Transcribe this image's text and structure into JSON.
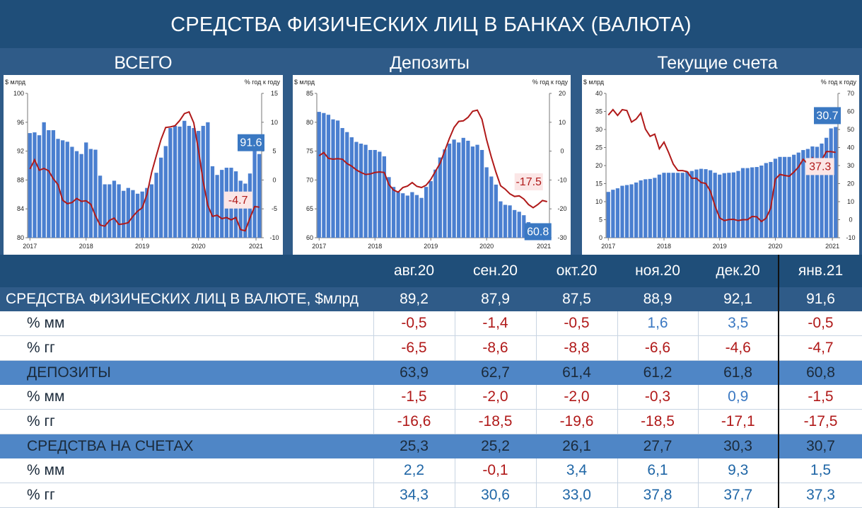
{
  "title": "СРЕДСТВА ФИЗИЧЕСКИХ ЛИЦ В БАНКАХ (ВАЛЮТА)",
  "colors": {
    "bar": "#4a7fd0",
    "line": "#b01919",
    "header": "#1f4e79",
    "band": "#2f5b88",
    "row_medium": "#4f86c6",
    "neg_text": "#b01919",
    "pos_text": "#3a78c2"
  },
  "chart_data": [
    {
      "type": "bar",
      "panel_title": "ВСЕГО",
      "ylabel": "$ млрд",
      "y2label": "% год к году",
      "ylim": [
        80,
        100
      ],
      "yticks": [
        80,
        84,
        88,
        92,
        96,
        100
      ],
      "y2lim": [
        -10,
        15
      ],
      "y2ticks": [
        -10,
        -5,
        0,
        5,
        10,
        15
      ],
      "x_tick_labels": [
        "2017",
        "2018",
        "2019",
        "2020",
        "2021"
      ],
      "bar_series": {
        "name": "$ млрд",
        "values": [
          94.5,
          94.6,
          94.2,
          96.0,
          94.9,
          94.9,
          93.7,
          93.5,
          93.3,
          92.6,
          92.0,
          91.6,
          93.2,
          92.3,
          92.2,
          88.6,
          87.4,
          87.4,
          87.9,
          87.4,
          86.5,
          86.9,
          86.6,
          86.1,
          86.4,
          86.9,
          87.4,
          89.0,
          91.1,
          92.7,
          95.2,
          95.5,
          95.4,
          96.2,
          95.5,
          95.2,
          94.8,
          95.5,
          96.0,
          89.9,
          88.7,
          89.4,
          89.7,
          89.7,
          89.2,
          87.9,
          87.5,
          88.9,
          92.1,
          91.6
        ]
      },
      "line_series": {
        "name": "% год к году",
        "values": [
          1.9,
          3.5,
          1.7,
          2.0,
          1.6,
          0.2,
          -0.8,
          -3.5,
          -4.1,
          -3.9,
          -3.2,
          -3.7,
          -3.6,
          -4.2,
          -6.2,
          -7.8,
          -8.0,
          -7.0,
          -6.6,
          -7.7,
          -7.6,
          -7.4,
          -6.3,
          -5.4,
          -4.8,
          -2.5,
          1.3,
          4.2,
          7.0,
          9.1,
          9.2,
          9.4,
          10.3,
          11.5,
          11.8,
          9.9,
          5.2,
          -0.2,
          -4.4,
          -6.3,
          -6.1,
          -6.7,
          -6.5,
          -6.9,
          -6.5,
          -8.6,
          -8.8,
          -6.6,
          -4.6,
          -4.7
        ]
      },
      "callouts": {
        "bar_last": "91.6",
        "line_last": "-4.7"
      }
    },
    {
      "type": "bar",
      "panel_title": "Депозиты",
      "ylabel": "$ млрд",
      "y2label": "% год к году",
      "ylim": [
        60,
        85
      ],
      "yticks": [
        60,
        65,
        70,
        75,
        80,
        85
      ],
      "y2lim": [
        -30,
        20
      ],
      "y2ticks": [
        -30,
        -20,
        -10,
        0,
        10,
        20
      ],
      "x_tick_labels": [
        "2017",
        "2018",
        "2019",
        "2020",
        "2021"
      ],
      "bar_series": {
        "name": "$ млрд",
        "values": [
          81.8,
          81.6,
          81.3,
          80.5,
          80.3,
          79.0,
          78.3,
          77.4,
          76.6,
          76.3,
          76.1,
          75.2,
          75.2,
          74.9,
          74.1,
          70.5,
          68.8,
          67.9,
          67.7,
          67.3,
          67.9,
          67.4,
          66.9,
          68.8,
          69.8,
          71.8,
          73.9,
          75.3,
          76.3,
          77.0,
          76.5,
          77.3,
          76.8,
          75.8,
          76.1,
          75.2,
          72.2,
          70.6,
          69.2,
          66.3,
          65.7,
          65.6,
          64.8,
          64.5,
          63.9,
          62.7,
          61.4,
          61.2,
          61.8,
          60.8
        ]
      },
      "line_series": {
        "name": "% год к году",
        "values": [
          -1.6,
          -0.5,
          -2.5,
          -2.8,
          -2.6,
          -2.8,
          -4.3,
          -5.2,
          -6.5,
          -7.4,
          -8.1,
          -7.9,
          -7.4,
          -7.2,
          -7.4,
          -11.6,
          -13.5,
          -14.2,
          -12.6,
          -12.1,
          -10.9,
          -12.2,
          -12.6,
          -11.8,
          -9.8,
          -7.0,
          -4.2,
          0.1,
          4.4,
          8.2,
          10.3,
          10.5,
          11.7,
          13.8,
          14.2,
          11.0,
          3.9,
          -2.0,
          -7.3,
          -12.0,
          -13.2,
          -14.8,
          -15.7,
          -15.5,
          -16.6,
          -18.5,
          -19.6,
          -18.5,
          -17.1,
          -17.5
        ]
      },
      "callouts": {
        "bar_last": "60.8",
        "line_last": "-17.5"
      }
    },
    {
      "type": "bar",
      "panel_title": "Текущие счета",
      "ylabel": "$ млрд",
      "y2label": "% год к году",
      "ylim": [
        0,
        40
      ],
      "yticks": [
        0,
        5,
        10,
        15,
        20,
        25,
        30,
        35,
        40
      ],
      "y2lim": [
        -10,
        70
      ],
      "y2ticks": [
        -10,
        0,
        10,
        20,
        30,
        40,
        50,
        60,
        70
      ],
      "x_tick_labels": [
        "2017",
        "2018",
        "2019",
        "2020",
        "2021"
      ],
      "bar_series": {
        "name": "$ млрд",
        "values": [
          12.7,
          13.3,
          13.7,
          14.4,
          14.6,
          14.8,
          15.3,
          15.9,
          16.2,
          16.3,
          16.6,
          17.5,
          18.0,
          18.0,
          18.0,
          18.0,
          18.0,
          18.3,
          18.5,
          18.9,
          19.1,
          19.0,
          18.7,
          18.0,
          17.5,
          17.9,
          18.0,
          18.1,
          18.5,
          19.3,
          19.3,
          19.5,
          19.6,
          20.0,
          20.7,
          21.0,
          21.9,
          22.4,
          22.4,
          22.4,
          23.0,
          23.6,
          24.3,
          24.6,
          25.3,
          25.2,
          26.1,
          27.7,
          30.3,
          30.7
        ]
      },
      "line_series": {
        "name": "% год к году",
        "values": [
          58.0,
          61.0,
          57.8,
          61.0,
          60.5,
          54.1,
          55.8,
          59.1,
          50.2,
          46.2,
          47.4,
          39.3,
          43.0,
          37.2,
          30.8,
          27.2,
          27.2,
          26.6,
          22.9,
          23.0,
          20.6,
          20.1,
          15.8,
          7.6,
          1.0,
          -0.5,
          0.1,
          0.2,
          -0.5,
          0.0,
          0.0,
          1.8,
          1.6,
          -1.0,
          0.8,
          6.4,
          22.5,
          25.1,
          24.5,
          24.1,
          26.4,
          29.2,
          33.5,
          30.9,
          34.3,
          30.6,
          33.0,
          37.8,
          37.7,
          37.3
        ]
      },
      "callouts": {
        "bar_last": "30.7",
        "line_last": "37.3"
      }
    }
  ],
  "table": {
    "columns": [
      "авг.20",
      "сен.20",
      "окт.20",
      "ноя.20",
      "дек.20",
      "янв.21"
    ],
    "rows": [
      {
        "label": "СРЕДСТВА ФИЗИЧЕСКИХ ЛИЦ В ВАЛЮТЕ, $млрд",
        "style": "dark",
        "values": [
          "89,2",
          "87,9",
          "87,5",
          "88,9",
          "92,1",
          "91,6"
        ]
      },
      {
        "label": "% мм",
        "style": "sub",
        "values": [
          "-0,5",
          "-1,4",
          "-0,5",
          "1,6",
          "3,5",
          "-0,5"
        ]
      },
      {
        "label": "% гг",
        "style": "sub",
        "values": [
          "-6,5",
          "-8,6",
          "-8,8",
          "-6,6",
          "-4,6",
          "-4,7"
        ]
      },
      {
        "label": "ДЕПОЗИТЫ",
        "style": "med",
        "values": [
          "63,9",
          "62,7",
          "61,4",
          "61,2",
          "61,8",
          "60,8"
        ]
      },
      {
        "label": "% мм",
        "style": "sub",
        "values": [
          "-1,5",
          "-2,0",
          "-2,0",
          "-0,3",
          "0,9",
          "-1,5"
        ]
      },
      {
        "label": "% гг",
        "style": "sub",
        "values": [
          "-16,6",
          "-18,5",
          "-19,6",
          "-18,5",
          "-17,1",
          "-17,5"
        ]
      },
      {
        "label": "СРЕДСТВА НА СЧЕТАХ",
        "style": "med",
        "values": [
          "25,3",
          "25,2",
          "26,1",
          "27,7",
          "30,3",
          "30,7"
        ]
      },
      {
        "label": "% мм",
        "style": "sub",
        "values": [
          "2,2",
          "-0,1",
          "3,4",
          "6,1",
          "9,3",
          "1,5"
        ]
      },
      {
        "label": "% гг",
        "style": "sub",
        "values": [
          "34,3",
          "30,6",
          "33,0",
          "37,8",
          "37,7",
          "37,3"
        ]
      }
    ]
  }
}
